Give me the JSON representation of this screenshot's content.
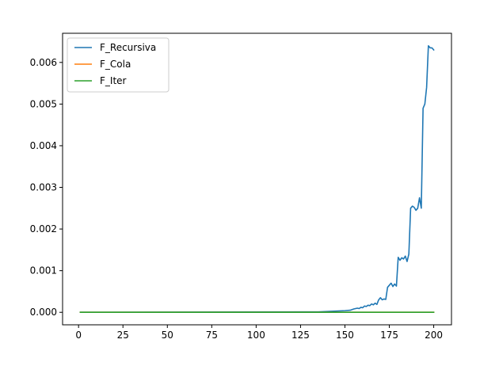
{
  "chart_data": {
    "type": "line",
    "title": "",
    "xlabel": "",
    "ylabel": "",
    "xlim": [
      -9,
      210
    ],
    "ylim": [
      -0.0003,
      0.0067
    ],
    "xticks": [
      0,
      25,
      50,
      75,
      100,
      125,
      150,
      175,
      200
    ],
    "xtick_labels": [
      "0",
      "25",
      "50",
      "75",
      "100",
      "125",
      "150",
      "175",
      "200"
    ],
    "yticks": [
      0.0,
      0.001,
      0.002,
      0.003,
      0.004,
      0.005,
      0.006
    ],
    "ytick_labels": [
      "0.000",
      "0.001",
      "0.002",
      "0.003",
      "0.004",
      "0.005",
      "0.006"
    ],
    "grid": false,
    "legend_position": "top-left",
    "series": [
      {
        "name": "F_Recursiva",
        "color": "#1f77b4",
        "x": [
          1,
          130,
          135,
          140,
          145,
          150,
          153,
          155,
          157,
          158,
          159,
          160,
          161,
          162,
          163,
          164,
          165,
          166,
          167,
          168,
          169,
          170,
          171,
          172,
          173,
          174,
          175,
          176,
          177,
          178,
          179,
          180,
          181,
          182,
          183,
          184,
          185,
          186,
          187,
          188,
          189,
          190,
          191,
          192,
          193,
          194,
          195,
          196,
          197,
          198,
          199,
          200
        ],
        "y": [
          0.0,
          1e-05,
          1e-05,
          2e-05,
          3e-05,
          4e-05,
          5e-05,
          8e-05,
          0.0001,
          9e-05,
          0.00012,
          0.00011,
          0.00015,
          0.00014,
          0.00017,
          0.00016,
          0.0002,
          0.00018,
          0.00022,
          0.00019,
          0.0003,
          0.00035,
          0.0003,
          0.00032,
          0.00031,
          0.0006,
          0.00065,
          0.0007,
          0.00062,
          0.00068,
          0.00063,
          0.00132,
          0.00125,
          0.00131,
          0.00128,
          0.00135,
          0.00122,
          0.0014,
          0.0025,
          0.00255,
          0.00252,
          0.00245,
          0.0025,
          0.00275,
          0.0025,
          0.0049,
          0.005,
          0.0054,
          0.0064,
          0.00635,
          0.00635,
          0.0063
        ]
      },
      {
        "name": "F_Cola",
        "color": "#ff7f0e",
        "x": [
          1,
          200
        ],
        "y": [
          0.0,
          0.0
        ]
      },
      {
        "name": "F_Iter",
        "color": "#2ca02c",
        "x": [
          1,
          200
        ],
        "y": [
          0.0,
          0.0
        ]
      }
    ]
  }
}
